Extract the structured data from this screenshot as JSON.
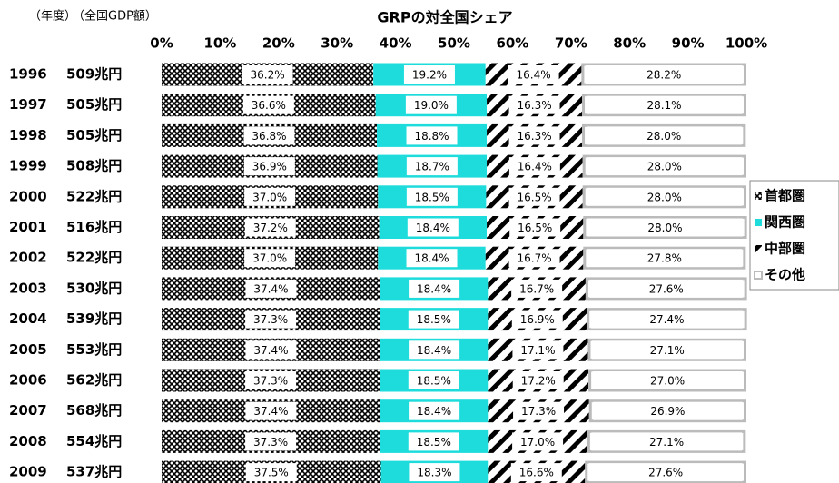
{
  "chart_data": {
    "type": "stacked_bar_horizontal",
    "title": "GRPの対全国シェア",
    "header_labels": [
      "（年度）",
      "（全国GDP額）"
    ],
    "categories": [
      "1996",
      "1997",
      "1998",
      "1999",
      "2000",
      "2001",
      "2002",
      "2003",
      "2004",
      "2005",
      "2006",
      "2007",
      "2008",
      "2009"
    ],
    "category_sublabels": [
      "509兆円",
      "505兆円",
      "505兆円",
      "508兆円",
      "522兆円",
      "516兆円",
      "522兆円",
      "530兆円",
      "539兆円",
      "553兆円",
      "562兆円",
      "568兆円",
      "554兆円",
      "537兆円"
    ],
    "xlim": [
      0,
      100
    ],
    "xticks": [
      {
        "value": 0,
        "label": "0%"
      },
      {
        "value": 10,
        "label": "10%"
      },
      {
        "value": 20,
        "label": "20%"
      },
      {
        "value": 30,
        "label": "30%"
      },
      {
        "value": 40,
        "label": "40%"
      },
      {
        "value": 50,
        "label": "50%"
      },
      {
        "value": 60,
        "label": "60%"
      },
      {
        "value": 70,
        "label": "70%"
      },
      {
        "value": 80,
        "label": "80%"
      },
      {
        "value": 90,
        "label": "90%"
      },
      {
        "value": 100,
        "label": "100%"
      }
    ],
    "legend": "right",
    "series": [
      {
        "name": "首都圏",
        "color": "#ff77cc",
        "pattern": "crosshatch",
        "values": [
          36.2,
          36.6,
          36.8,
          36.9,
          37.0,
          37.2,
          37.0,
          37.4,
          37.3,
          37.4,
          37.3,
          37.4,
          37.3,
          37.5
        ],
        "value_labels": [
          "36.2%",
          "36.6%",
          "36.8%",
          "36.9%",
          "37.0%",
          "37.2%",
          "37.0%",
          "37.4%",
          "37.3%",
          "37.4%",
          "37.3%",
          "37.4%",
          "37.3%",
          "37.5%"
        ]
      },
      {
        "name": "関西圏",
        "color": "#1edcdc",
        "pattern": "solid",
        "values": [
          19.2,
          19.0,
          18.8,
          18.7,
          18.5,
          18.4,
          18.4,
          18.4,
          18.5,
          18.4,
          18.5,
          18.4,
          18.5,
          18.3
        ],
        "value_labels": [
          "19.2%",
          "19.0%",
          "18.8%",
          "18.7%",
          "18.5%",
          "18.4%",
          "18.4%",
          "18.4%",
          "18.5%",
          "18.4%",
          "18.5%",
          "18.4%",
          "18.5%",
          "18.3%"
        ]
      },
      {
        "name": "中部圏",
        "color": "#22aa66",
        "pattern": "stripes",
        "values": [
          16.4,
          16.3,
          16.3,
          16.4,
          16.5,
          16.5,
          16.7,
          16.7,
          16.9,
          17.1,
          17.2,
          17.3,
          17.0,
          16.6
        ],
        "value_labels": [
          "16.4%",
          "16.3%",
          "16.3%",
          "16.4%",
          "16.5%",
          "16.5%",
          "16.7%",
          "16.7%",
          "16.9%",
          "17.1%",
          "17.2%",
          "17.3%",
          "17.0%",
          "16.6%"
        ]
      },
      {
        "name": "その他",
        "color": "#bbbbbb",
        "pattern": "outline",
        "values": [
          28.2,
          28.1,
          28.0,
          28.0,
          28.0,
          28.0,
          27.8,
          27.6,
          27.4,
          27.1,
          27.0,
          26.9,
          27.1,
          27.6
        ],
        "value_labels": [
          "28.2%",
          "28.1%",
          "28.0%",
          "28.0%",
          "28.0%",
          "28.0%",
          "27.8%",
          "27.6%",
          "27.4%",
          "27.1%",
          "27.0%",
          "26.9%",
          "27.1%",
          "27.6%"
        ]
      }
    ]
  }
}
